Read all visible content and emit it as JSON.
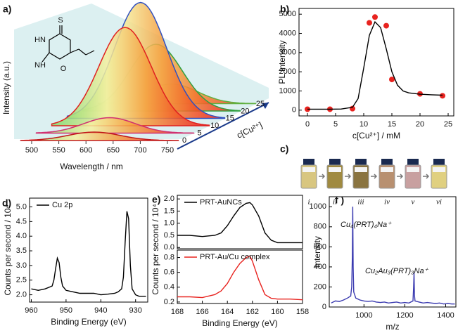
{
  "chart_data": [
    {
      "type": "waterfall3d",
      "panel": "a)",
      "ylabel": "Intensity (a.u.)",
      "xlabel": "Wavelength / nm",
      "xticks": [
        500,
        550,
        600,
        650,
        700,
        750
      ],
      "zlabel": "c[Cu²⁺]",
      "zticks": [
        0,
        5,
        10,
        15,
        20,
        25
      ],
      "structure_labels": [
        "S",
        "HN",
        "NH",
        "O"
      ]
    },
    {
      "type": "scatter",
      "panel": "b)",
      "xlabel": "c[Cu²⁺] / mM",
      "ylabel": "PL Intensity",
      "xlim": [
        -1.5,
        26
      ],
      "xticks": [
        0,
        5,
        10,
        15,
        20,
        25
      ],
      "ylim": [
        -300,
        5300
      ],
      "yticks": [
        0,
        1000,
        2000,
        3000,
        4000,
        5000
      ],
      "series": [
        {
          "type": "scatter",
          "color": "#e8231f",
          "x": [
            0,
            4,
            8,
            11,
            12,
            14,
            15,
            20,
            24
          ],
          "values": [
            50,
            50,
            80,
            4550,
            4850,
            4400,
            1600,
            850,
            750
          ]
        },
        {
          "type": "line",
          "color": "#000000",
          "x": [
            0,
            4,
            6,
            8,
            9,
            10,
            11,
            12,
            13,
            14,
            15,
            16,
            17,
            18,
            20,
            22,
            24
          ],
          "values": [
            50,
            50,
            60,
            150,
            600,
            2200,
            3900,
            4600,
            4300,
            3200,
            2000,
            1300,
            1000,
            900,
            830,
            800,
            780
          ]
        }
      ]
    },
    {
      "type": "line",
      "panel": "d)",
      "xlabel": "Binding Energy (eV)",
      "ylabel": "Counts per second / 10⁴",
      "xlim": [
        960.5,
        926.5
      ],
      "xticks": [
        960,
        950,
        940,
        930
      ],
      "ylim": [
        1.75,
        5.3
      ],
      "yticks": [
        {
          "value": 2,
          "label": "2.0"
        },
        2.5,
        {
          "value": 3,
          "label": "3.0"
        },
        3.5,
        {
          "value": 4,
          "label": "4.0"
        },
        4.5,
        {
          "value": 5,
          "label": "5.0"
        }
      ],
      "x": [
        960,
        958,
        956,
        954,
        953.5,
        953,
        952.5,
        952,
        951.5,
        951,
        950,
        948,
        946,
        944,
        942,
        940,
        938,
        936,
        935,
        934,
        933.5,
        933,
        932.5,
        932,
        931.5,
        931,
        930,
        929,
        928,
        927
      ],
      "series": [
        {
          "name": "Cu 2p",
          "color": "#000000",
          "values": [
            2.2,
            2.15,
            2.2,
            2.3,
            2.5,
            2.9,
            3.25,
            3.1,
            2.6,
            2.3,
            2.15,
            2.1,
            2.05,
            2.05,
            2.05,
            2.0,
            2.02,
            2.05,
            2.1,
            2.2,
            2.6,
            3.8,
            4.85,
            4.6,
            3.0,
            2.2,
            2.0,
            1.95,
            1.95,
            1.95
          ]
        }
      ]
    },
    {
      "type": "line",
      "panel": "e)",
      "ylabel": "Counts per second / 10⁴",
      "xlim": [
        168,
        158
      ],
      "ylim": [
        -0.05,
        2.15
      ],
      "yticks": [
        {
          "value": 0,
          "label": "0.0"
        },
        0.5,
        {
          "value": 1,
          "label": "1.0"
        },
        1.5,
        {
          "value": 2,
          "label": "2.0"
        }
      ],
      "x": [
        168,
        167,
        166,
        165,
        164.5,
        164,
        163.5,
        163,
        162.5,
        162.2,
        162,
        161.5,
        161,
        160.5,
        160,
        159,
        158
      ],
      "series": [
        {
          "name": "PRT-AuNCs",
          "color": "#000000",
          "values": [
            0.5,
            0.5,
            0.45,
            0.5,
            0.6,
            0.9,
            1.3,
            1.65,
            1.82,
            1.85,
            1.75,
            1.3,
            0.6,
            0.3,
            0.2,
            0.2,
            0.2
          ]
        }
      ]
    },
    {
      "type": "line",
      "xlabel": "Binding Energy (eV)",
      "xlim": [
        168,
        158
      ],
      "xticks": [
        168,
        166,
        164,
        162,
        160,
        158
      ],
      "ylim": [
        0.18,
        0.9
      ],
      "yticks": [
        0.2,
        0.4,
        0.6,
        0.8
      ],
      "x": [
        168,
        167,
        166,
        165,
        164.5,
        164,
        163.5,
        163,
        162.5,
        162.2,
        162,
        161.5,
        161,
        160.5,
        160,
        159,
        158
      ],
      "series": [
        {
          "name": "PRT-Au/Cu complex",
          "color": "#e8231f",
          "values": [
            0.27,
            0.27,
            0.26,
            0.3,
            0.35,
            0.45,
            0.6,
            0.72,
            0.8,
            0.82,
            0.75,
            0.5,
            0.3,
            0.25,
            0.24,
            0.24,
            0.23
          ]
        }
      ]
    },
    {
      "type": "line",
      "panel": "f )",
      "xlabel": "m/z",
      "ylabel": "Intensity",
      "xlim": [
        830,
        1450
      ],
      "xticks": [
        1000,
        1200,
        1400
      ],
      "ylim": [
        0,
        1100
      ],
      "yticks": [
        0,
        200,
        400,
        600,
        800,
        1000
      ],
      "annotations": [
        "Cu₄(PRT)₄Na⁺",
        "Cu₂Au₃(PRT)₃Na⁺"
      ],
      "annotation_color": "#2a8a8a",
      "x": [
        840,
        860,
        880,
        900,
        920,
        935,
        940,
        943,
        945,
        947,
        950,
        960,
        980,
        1000,
        1020,
        1040,
        1060,
        1080,
        1100,
        1120,
        1140,
        1160,
        1180,
        1200,
        1220,
        1240,
        1243,
        1245,
        1247,
        1250,
        1270,
        1290,
        1310,
        1330,
        1350,
        1370,
        1390,
        1410,
        1430,
        1445
      ],
      "series": [
        {
          "color": "#3a3ab0",
          "values": [
            40,
            60,
            55,
            70,
            90,
            110,
            200,
            500,
            1000,
            400,
            150,
            90,
            70,
            60,
            55,
            60,
            50,
            45,
            50,
            40,
            45,
            50,
            40,
            45,
            40,
            60,
            200,
            340,
            120,
            60,
            50,
            40,
            45,
            40,
            35,
            40,
            30,
            35,
            30,
            30
          ]
        }
      ]
    }
  ],
  "panel_c": {
    "panel": "c)",
    "vials": [
      "i",
      "ii",
      "iii",
      "iv",
      "v",
      "vi"
    ]
  }
}
